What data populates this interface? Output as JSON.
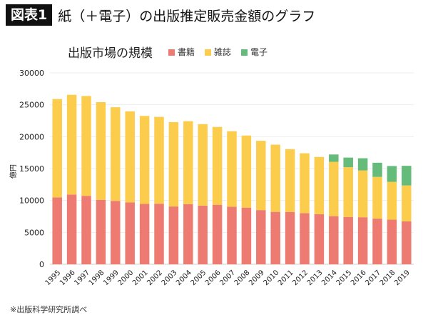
{
  "header": {
    "badge": "図表1",
    "title": "紙（＋電子）の出版推定販売金額のグラフ"
  },
  "footer": "※出版科学研究所調べ",
  "chart_data": {
    "type": "bar",
    "stacked": true,
    "title": "出版市場の規模",
    "ylabel": "億円",
    "xlabel": "",
    "ylim": [
      0,
      30000
    ],
    "yticks": [
      0,
      5000,
      10000,
      15000,
      20000,
      25000,
      30000
    ],
    "grid": true,
    "legend": "top",
    "categories": [
      "1995",
      "1996",
      "1997",
      "1998",
      "1999",
      "2000",
      "2001",
      "2002",
      "2003",
      "2004",
      "2005",
      "2006",
      "2007",
      "2008",
      "2009",
      "2010",
      "2011",
      "2012",
      "2013",
      "2014",
      "2015",
      "2016",
      "2017",
      "2018",
      "2019"
    ],
    "series": [
      {
        "name": "書籍",
        "color": "#ee7b71",
        "values": [
          10470,
          10931,
          10730,
          10100,
          9936,
          9706,
          9456,
          9490,
          9056,
          9429,
          9197,
          9326,
          9026,
          8878,
          8492,
          8213,
          8199,
          8013,
          7851,
          7544,
          7419,
          7370,
          7152,
          6991,
          6723
        ]
      },
      {
        "name": "雑誌",
        "color": "#fccd4d",
        "values": [
          15427,
          15633,
          15644,
          15315,
          14672,
          14261,
          13794,
          13616,
          13222,
          12998,
          12767,
          12200,
          11827,
          11299,
          10864,
          10536,
          9844,
          9385,
          8972,
          8520,
          7801,
          7339,
          6548,
          5930,
          5637
        ]
      },
      {
        "name": "電子",
        "color": "#65bb79",
        "values": [
          0,
          0,
          0,
          0,
          0,
          0,
          0,
          0,
          0,
          0,
          0,
          0,
          0,
          0,
          0,
          0,
          0,
          0,
          0,
          1144,
          1502,
          1909,
          2215,
          2479,
          3072
        ]
      }
    ]
  }
}
